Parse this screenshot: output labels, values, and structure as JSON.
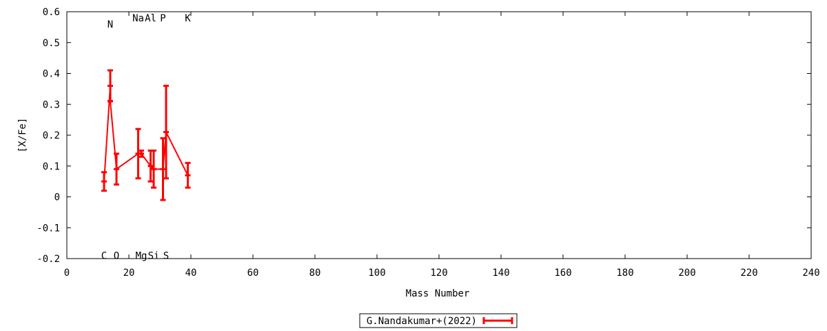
{
  "chart_data": {
    "type": "line",
    "xlabel": "Mass Number",
    "ylabel": "[X/Fe]",
    "xlim": [
      0,
      240
    ],
    "ylim": [
      -0.2,
      0.6
    ],
    "xticks": [
      0,
      20,
      40,
      60,
      80,
      100,
      120,
      140,
      160,
      180,
      200,
      220,
      240
    ],
    "yticks": [
      -0.2,
      -0.1,
      0,
      0.1,
      0.2,
      0.3,
      0.4,
      0.5,
      0.6
    ],
    "ytick_labels": [
      "-0.2",
      "-0.1",
      "0",
      "0.1",
      "0.2",
      "0.3",
      "0.4",
      "0.5",
      "0.6"
    ],
    "grid": false,
    "legend_position": "bottom-center",
    "series": [
      {
        "name": "G.Nandakumar+(2022)",
        "color": "#ff0000",
        "points": [
          {
            "x": 12,
            "y": 0.05,
            "err": 0.03
          },
          {
            "x": 14,
            "y": 0.36,
            "err": 0.05
          },
          {
            "x": 14,
            "y": 0.31,
            "err": 0.0
          },
          {
            "x": 16,
            "y": 0.09,
            "err": 0.05
          },
          {
            "x": 23,
            "y": 0.14,
            "err": 0.08
          },
          {
            "x": 24,
            "y": 0.14,
            "err": 0.01
          },
          {
            "x": 27,
            "y": 0.1,
            "err": 0.05
          },
          {
            "x": 28,
            "y": 0.09,
            "err": 0.06
          },
          {
            "x": 31,
            "y": 0.09,
            "err": 0.1
          },
          {
            "x": 32,
            "y": 0.21,
            "err": 0.15
          },
          {
            "x": 39,
            "y": 0.07,
            "err": 0.04
          }
        ]
      }
    ],
    "annotations": [
      {
        "text": "C",
        "x": 12,
        "y": -0.19
      },
      {
        "text": "N",
        "x": 14,
        "y": 0.56
      },
      {
        "text": "O",
        "x": 16,
        "y": -0.19
      },
      {
        "text": "Na",
        "x": 23,
        "y": 0.58
      },
      {
        "text": "Mg",
        "x": 24,
        "y": -0.19
      },
      {
        "text": "Al",
        "x": 27,
        "y": 0.58
      },
      {
        "text": "Si",
        "x": 28,
        "y": -0.19
      },
      {
        "text": "P",
        "x": 31,
        "y": 0.58
      },
      {
        "text": "S",
        "x": 32,
        "y": -0.19
      },
      {
        "text": "K",
        "x": 39,
        "y": 0.58
      }
    ]
  }
}
